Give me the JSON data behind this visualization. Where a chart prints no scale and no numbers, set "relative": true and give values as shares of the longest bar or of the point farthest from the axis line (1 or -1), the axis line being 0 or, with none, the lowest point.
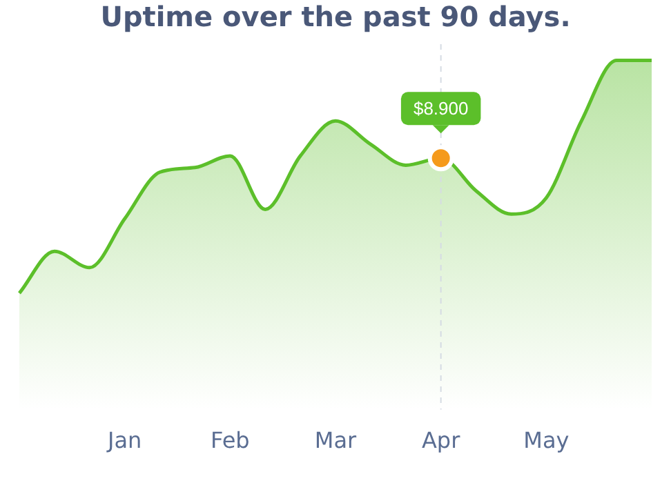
{
  "chart_data": {
    "type": "area",
    "title": "Uptime over the past 90 days.",
    "relative": true,
    "categories": [
      null,
      null,
      null,
      "Jan",
      null,
      null,
      "Feb",
      null,
      null,
      "Mar",
      null,
      null,
      "Apr",
      null,
      null,
      "May",
      null,
      null,
      null
    ],
    "series": [
      {
        "color": "#5cbf2a",
        "values": [
          0,
          0.18,
          0.11,
          0.32,
          0.52,
          0.54,
          0.59,
          0.36,
          0.59,
          0.74,
          0.64,
          0.55,
          0.58,
          0.44,
          0.34,
          0.41,
          0.74,
          1.0,
          1.0
        ]
      }
    ],
    "annotations": [
      {
        "text": "$8.900",
        "x": "Apr",
        "y": 0.58
      }
    ],
    "ref_lines": [
      {
        "axis": "x",
        "value": "Apr",
        "color": "#d5dbe3",
        "line_style": "dashed"
      }
    ],
    "grid": false,
    "legend": false,
    "marker": "none"
  }
}
